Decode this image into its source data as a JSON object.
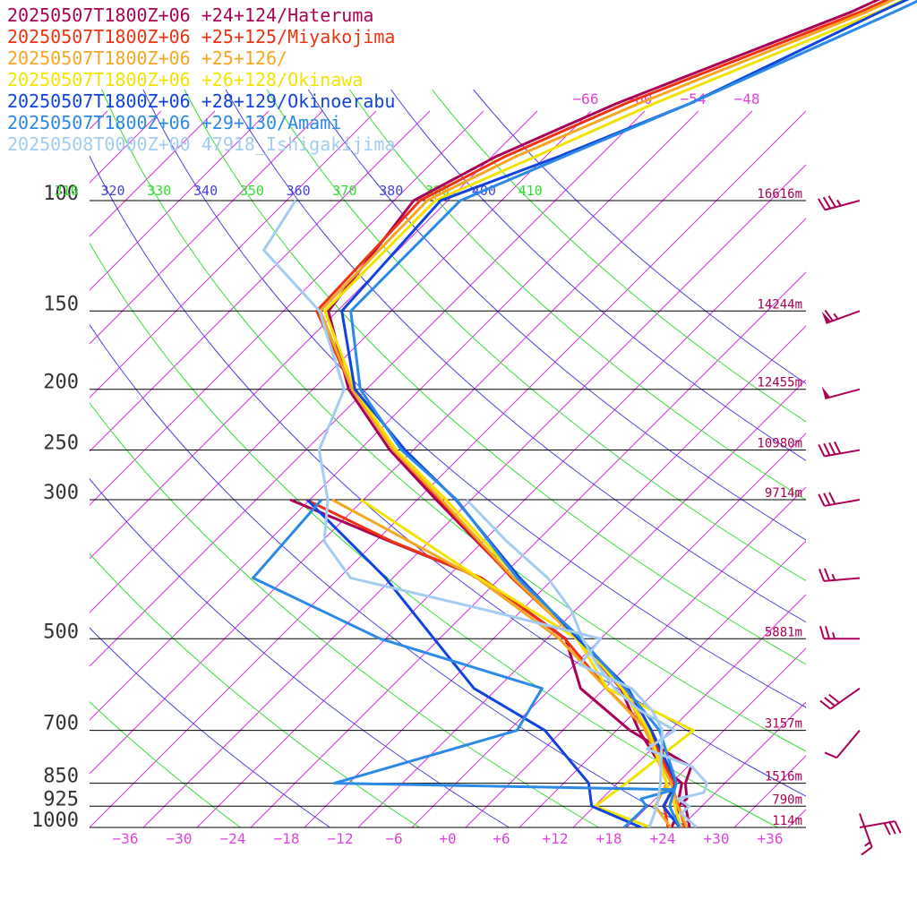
{
  "chart_data": {
    "type": "line",
    "title": "",
    "xlabel": "",
    "ylabel": "",
    "x_axis": {
      "label": "Temperature (skewed)",
      "ticks": [
        -36,
        -30,
        -24,
        -18,
        -12,
        -6,
        0,
        6,
        12,
        18,
        24,
        30,
        36
      ],
      "tick_labels": [
        "−36",
        "−30",
        "−24",
        "−18",
        "−12",
        "−6",
        "+0",
        "+6",
        "+12",
        "+18",
        "+24",
        "+30",
        "+36"
      ],
      "range": [
        -40,
        40
      ]
    },
    "y_axis": {
      "label": "Pressure (hPa)",
      "scale": "log",
      "range": [
        1000,
        100
      ],
      "levels": [
        {
          "p": 100,
          "label": "100",
          "height": "16616m"
        },
        {
          "p": 150,
          "label": "150",
          "height": "14244m"
        },
        {
          "p": 200,
          "label": "200",
          "height": "12455m"
        },
        {
          "p": 250,
          "label": "250",
          "height": "10980m"
        },
        {
          "p": 300,
          "label": "300",
          "height": "9714m"
        },
        {
          "p": 500,
          "label": "500",
          "height": "5881m"
        },
        {
          "p": 700,
          "label": "700",
          "height": "3157m"
        },
        {
          "p": 850,
          "label": "850",
          "height": "1516m"
        },
        {
          "p": 925,
          "label": "925",
          "height": "790m"
        },
        {
          "p": 1000,
          "label": "1000",
          "height": "114m"
        }
      ]
    },
    "isotherm_labels": [
      "−66",
      "−60",
      "−54",
      "−48"
    ],
    "theta_labels": [
      {
        "text": "310",
        "theta": 310,
        "color": "#33dd33"
      },
      {
        "text": "320",
        "theta": 320,
        "color": "#4444dd"
      },
      {
        "text": "330",
        "theta": 330,
        "color": "#33dd33"
      },
      {
        "text": "340",
        "theta": 340,
        "color": "#4444dd"
      },
      {
        "text": "350",
        "theta": 350,
        "color": "#33dd33"
      },
      {
        "text": "360",
        "theta": 360,
        "color": "#4444dd"
      },
      {
        "text": "370",
        "theta": 370,
        "color": "#33dd33"
      },
      {
        "text": "380",
        "theta": 380,
        "color": "#4444dd"
      },
      {
        "text": "390",
        "theta": 390,
        "color": "#33dd33"
      },
      {
        "text": "400",
        "theta": 400,
        "color": "#4444dd"
      },
      {
        "text": "410",
        "theta": 410,
        "color": "#33dd33"
      }
    ],
    "legend_position": "top-left",
    "series": [
      {
        "name": "20250507T1800Z+06 +24+124/Hateruma",
        "color": "#aa0055",
        "temp_p": [
          1000,
          925,
          900,
          850,
          800,
          700,
          600,
          500,
          400,
          300,
          250,
          200,
          150,
          100,
          85,
          70,
          50,
          40
        ],
        "temp": [
          27,
          24.2,
          22.6,
          21.2,
          17.1,
          10.5,
          3.8,
          -6.6,
          -20.6,
          -37.9,
          -48.6,
          -60,
          -71,
          -73.8,
          -69.5,
          -62,
          -46,
          -38
        ],
        "dew_p": [
          1000,
          950,
          925,
          900,
          850,
          800,
          700,
          600,
          500,
          400,
          350,
          300
        ],
        "dew": [
          25,
          24.1,
          23.3,
          23.5,
          21.6,
          20.4,
          9.5,
          -0.7,
          -7.9,
          -24.1,
          -38.3,
          -54.2
        ]
      },
      {
        "name": "20250507T1800Z+06 +25+125/Miyakojima",
        "color": "#ee3311",
        "temp_p": [
          1000,
          925,
          850,
          800,
          700,
          600,
          500,
          400,
          300,
          250,
          200,
          150,
          100,
          85,
          70,
          50,
          40
        ],
        "temp": [
          26.5,
          23.4,
          20,
          17.5,
          11.3,
          4.5,
          -6.6,
          -20.7,
          -37.5,
          -48.2,
          -59.6,
          -72.3,
          -73.1,
          -68.5,
          -61,
          -45,
          -37
        ],
        "dew_p": [
          1000,
          925,
          850,
          700,
          600,
          500,
          400,
          350,
          300
        ],
        "dew": [
          24.6,
          21.8,
          20.4,
          11.6,
          2.2,
          -8,
          -24.1,
          -38.1,
          -52.4
        ]
      },
      {
        "name": "20250507T1800Z+06 +25+126/",
        "color": "#f5a623",
        "temp_p": [
          1000,
          925,
          850,
          700,
          600,
          500,
          400,
          300,
          250,
          200,
          150,
          100,
          85,
          70,
          50,
          40
        ],
        "temp": [
          26.7,
          23.3,
          20,
          11.2,
          4.1,
          -6.7,
          -20.5,
          -37.3,
          -48.2,
          -59.6,
          -71.9,
          -72.3,
          -67.3,
          -59.5,
          -44.3,
          -36.2
        ],
        "dew_p": [
          1000,
          925,
          850,
          700,
          600,
          500,
          400,
          300
        ],
        "dew": [
          24.9,
          20.8,
          19.5,
          11.4,
          2.2,
          -8.6,
          -24.6,
          -49.5
        ]
      },
      {
        "name": "20250507T1800Z+06 +26+128/Okinawa",
        "color": "#f2e400",
        "temp_p": [
          1000,
          925,
          850,
          700,
          600,
          500,
          400,
          300,
          250,
          200,
          150,
          100,
          85,
          70,
          50,
          40
        ],
        "temp": [
          26,
          23,
          19.5,
          11.6,
          3.9,
          -6.5,
          -20,
          -36.8,
          -47.9,
          -59.3,
          -71.4,
          -71.4,
          -65.1,
          -57.8,
          -43,
          -35.2
        ],
        "dew_p": [
          1000,
          925,
          850,
          700,
          600,
          500,
          400,
          300
        ],
        "dew": [
          22.7,
          14.1,
          15,
          16.6,
          2.3,
          -6.6,
          -24.4,
          -46.3
        ]
      },
      {
        "name": "20250507T1800Z+06 +28+129/Okinoerabu",
        "color": "#1144dd",
        "temp_p": [
          1000,
          925,
          850,
          700,
          600,
          500,
          400,
          300,
          250,
          200,
          150,
          100,
          85,
          70,
          50,
          40
        ],
        "temp": [
          25.9,
          21.7,
          20.6,
          11.9,
          4.6,
          -6.5,
          -19.8,
          -35.7,
          -46.9,
          -59.3,
          -69.5,
          -70.8,
          -62.5,
          -53.8,
          -42.8,
          -34.7
        ],
        "dew_p": [
          1000,
          925,
          850,
          700,
          600,
          500,
          400,
          300
        ],
        "dew": [
          21.6,
          13.7,
          10.8,
          0,
          -12.6,
          -22.6,
          -34.8,
          -52.3
        ]
      },
      {
        "name": "20250507T1800Z+06 +29+130/Amami",
        "color": "#2a8ae6",
        "temp_p": [
          1000,
          925,
          850,
          700,
          600,
          500,
          400,
          300,
          250,
          200,
          150,
          100,
          85,
          70,
          50,
          40
        ],
        "temp": [
          25.9,
          22.4,
          20.6,
          12.8,
          4.3,
          -6.2,
          -20.1,
          -35.6,
          -47.3,
          -58.7,
          -68.5,
          -68.6,
          -61.9,
          -53.8,
          -41.2,
          -33.6
        ],
        "dew_p": [
          1000,
          925,
          900,
          870,
          850,
          700,
          600,
          500,
          400,
          300
        ],
        "dew": [
          19.7,
          19.8,
          18.4,
          21.1,
          -17.6,
          -3.1,
          -5,
          -28.6,
          -49.6,
          -50.7
        ]
      },
      {
        "name": "20250508T0000Z+00 47918_Ishigakijima",
        "color": "#a3ccf2",
        "temp_p": [
          1000,
          950,
          925,
          900,
          880,
          850,
          800,
          750,
          700,
          650,
          600,
          550,
          500,
          450,
          400,
          350,
          300
        ],
        "temp": [
          27.8,
          24.5,
          24.6,
          22.5,
          24.7,
          24,
          20.5,
          13.5,
          14.5,
          8.3,
          3.1,
          -1.5,
          -6,
          -10.5,
          -16.7,
          -25.3,
          -34.5
        ],
        "dew_p": [
          1000,
          925,
          850,
          700,
          650,
          600,
          550,
          500,
          450,
          400,
          350,
          300,
          250,
          200,
          150,
          120,
          100
        ],
        "dew": [
          22.5,
          21,
          18.8,
          13.1,
          9.7,
          5,
          -3.4,
          -4,
          -20,
          -38.7,
          -45.7,
          -50,
          -56.5,
          -60.5,
          -72,
          -85,
          -87
        ]
      }
    ],
    "wind_barbs": [
      {
        "p": 100,
        "dir": 255,
        "kt": 35
      },
      {
        "p": 150,
        "dir": 250,
        "kt": 65
      },
      {
        "p": 200,
        "dir": 255,
        "kt": 50
      },
      {
        "p": 250,
        "dir": 260,
        "kt": 40
      },
      {
        "p": 300,
        "dir": 260,
        "kt": 30
      },
      {
        "p": 400,
        "dir": 265,
        "kt": 25
      },
      {
        "p": 500,
        "dir": 270,
        "kt": 25
      },
      {
        "p": 600,
        "dir": 235,
        "kt": 30
      },
      {
        "p": 700,
        "dir": 220,
        "kt": 10
      },
      {
        "p": 950,
        "dir": 160,
        "kt": 15
      },
      {
        "p": 1000,
        "dir": 80,
        "kt": 30
      }
    ]
  }
}
